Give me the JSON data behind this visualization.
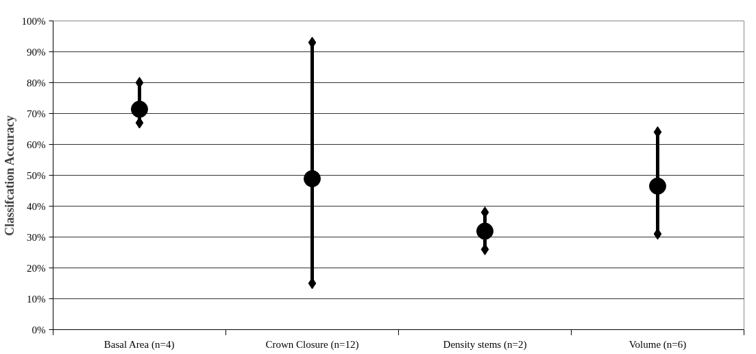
{
  "chart_data": {
    "type": "scatter",
    "ylabel": "Classifcation Accuracy",
    "categories": [
      "Basal Area (n=4)",
      "Crown Closure (n=12)",
      "Density stems (n=2)",
      "Volume (n=6)"
    ],
    "series": [
      {
        "type": "line",
        "marker": "diamond",
        "color": "#000000",
        "x": [
          "Basal Area (n=4)",
          "Basal Area (n=4)"
        ],
        "values": [
          67,
          80
        ]
      },
      {
        "type": "line",
        "marker": "diamond",
        "color": "#000000",
        "x": [
          "Crown Closure (n=12)",
          "Crown Closure (n=12)"
        ],
        "values": [
          15,
          93
        ]
      },
      {
        "type": "line",
        "marker": "diamond",
        "color": "#000000",
        "x": [
          "Density stems (n=2)",
          "Density stems (n=2)"
        ],
        "values": [
          26,
          38
        ]
      },
      {
        "type": "line",
        "marker": "diamond",
        "color": "#000000",
        "x": [
          "Volume (n=6)",
          "Volume (n=6)"
        ],
        "values": [
          31,
          64
        ]
      },
      {
        "marker": "circle",
        "color": "#000000",
        "values": [
          71.4,
          48.9,
          31.9,
          46.5
        ]
      }
    ],
    "grid": "y",
    "ylim": [
      0,
      100
    ],
    "yticks": [
      {
        "value": 0,
        "label": "0%"
      },
      {
        "value": 10,
        "label": "10%"
      },
      {
        "value": 20,
        "label": "20%"
      },
      {
        "value": 30,
        "label": "30%"
      },
      {
        "value": 40,
        "label": "40%"
      },
      {
        "value": 50,
        "label": "50%"
      },
      {
        "value": 60,
        "label": "60%"
      },
      {
        "value": 70,
        "label": "70%"
      },
      {
        "value": 80,
        "label": "80%"
      },
      {
        "value": 90,
        "label": "90%"
      },
      {
        "value": 100,
        "label": "100%"
      }
    ]
  }
}
